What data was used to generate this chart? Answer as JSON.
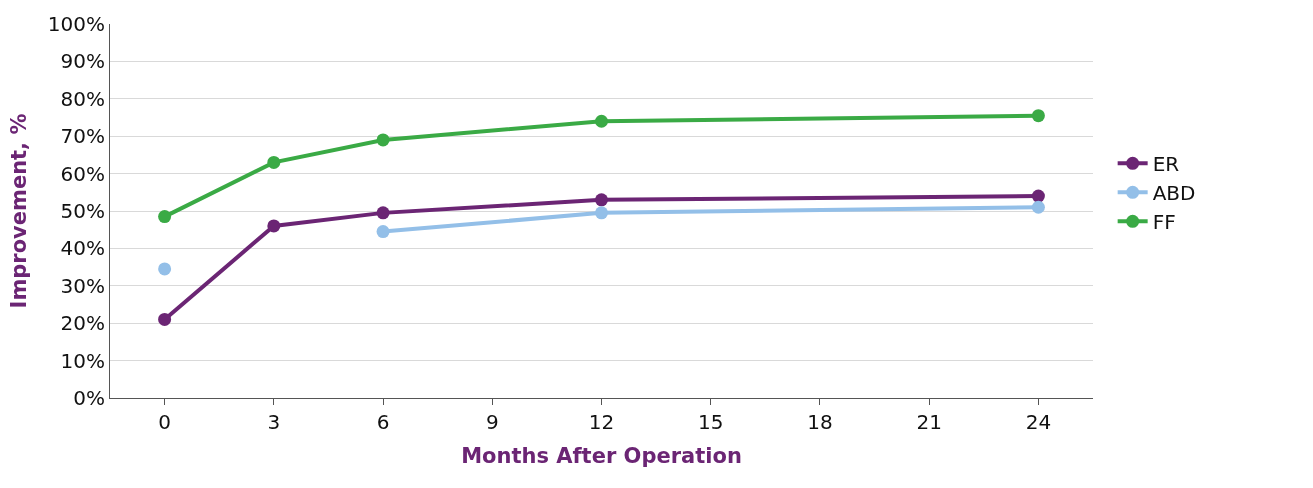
{
  "chart_data": {
    "type": "line",
    "xlabel": "Months After Operation",
    "ylabel": "Improvement, %",
    "x": [
      0,
      3,
      6,
      12,
      24
    ],
    "series": [
      {
        "name": "ER",
        "color": "#6b2574",
        "values": [
          21,
          46,
          49.5,
          53,
          54
        ]
      },
      {
        "name": "ABD",
        "color": "#93bfe8",
        "values": [
          34.5,
          null,
          44.5,
          49.5,
          51
        ]
      },
      {
        "name": "FF",
        "color": "#3aaa45",
        "values": [
          48.5,
          63,
          69,
          74,
          75.5
        ]
      }
    ],
    "xlim": [
      -1.5,
      25.5
    ],
    "xticks": [
      0,
      3,
      6,
      9,
      12,
      15,
      18,
      21,
      24
    ],
    "ylim": [
      0,
      100
    ],
    "yticks": [
      {
        "value": 0,
        "label": "0%"
      },
      {
        "value": 10,
        "label": "10%"
      },
      {
        "value": 20,
        "label": "20%"
      },
      {
        "value": 30,
        "label": "30%"
      },
      {
        "value": 40,
        "label": "40%"
      },
      {
        "value": 50,
        "label": "50%"
      },
      {
        "value": 60,
        "label": "60%"
      },
      {
        "value": 70,
        "label": "70%"
      },
      {
        "value": 80,
        "label": "80%"
      },
      {
        "value": 90,
        "label": "90%"
      },
      {
        "value": 100,
        "label": "100%"
      }
    ],
    "grid": "y",
    "legend": "right",
    "marker": "circle",
    "line_style": "solid"
  }
}
